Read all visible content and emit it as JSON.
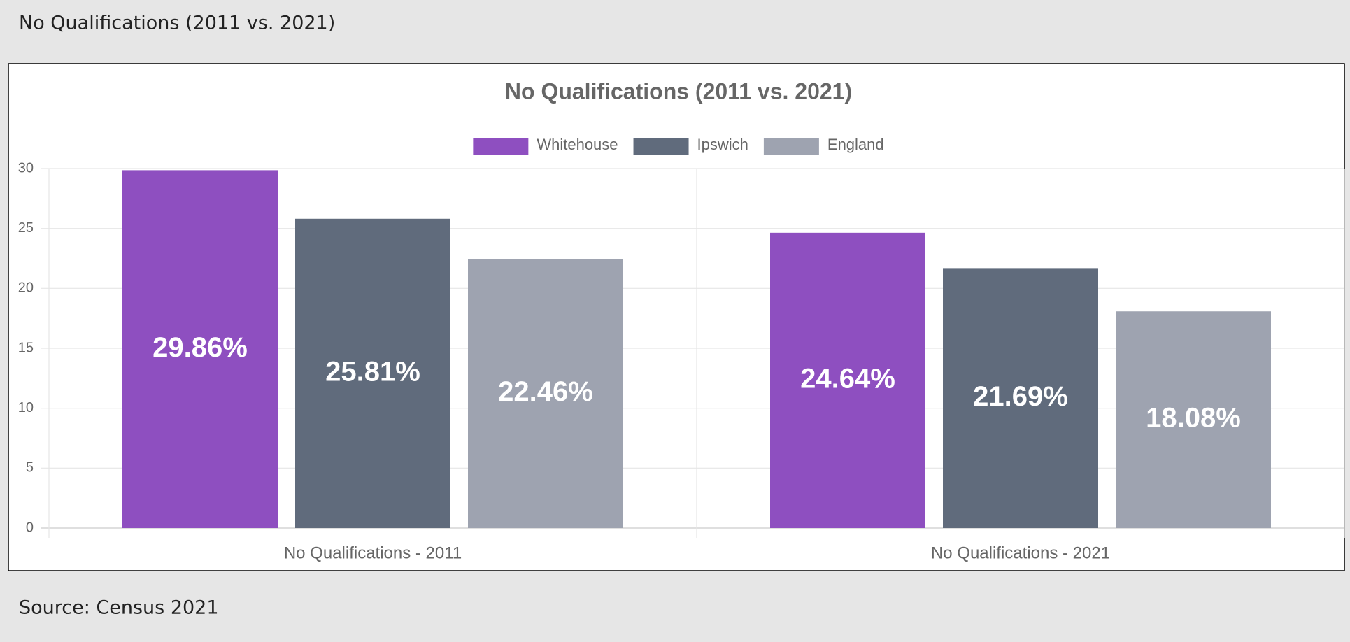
{
  "header": {
    "title": "No Qualifications (2011 vs. 2021)"
  },
  "chart_data": {
    "type": "bar",
    "title": "No Qualifications (2011 vs. 2021)",
    "categories": [
      "No Qualifications - 2011",
      "No Qualifications - 2021"
    ],
    "series": [
      {
        "name": "Whitehouse",
        "color": "#8e4fc0",
        "values": [
          29.86,
          24.64
        ],
        "value_labels": [
          "29.86%",
          "24.64%"
        ]
      },
      {
        "name": "Ipswich",
        "color": "#606b7c",
        "values": [
          25.81,
          21.69
        ],
        "value_labels": [
          "25.81%",
          "21.69%"
        ]
      },
      {
        "name": "England",
        "color": "#9ea3b0",
        "values": [
          22.46,
          18.08
        ],
        "value_labels": [
          "22.46%",
          "18.08%"
        ]
      }
    ],
    "ylim": [
      0,
      30
    ],
    "yticks": [
      0,
      5,
      10,
      15,
      20,
      25,
      30
    ],
    "grid": true,
    "legend": "top"
  },
  "footer": {
    "source": "Source: Census 2021"
  }
}
